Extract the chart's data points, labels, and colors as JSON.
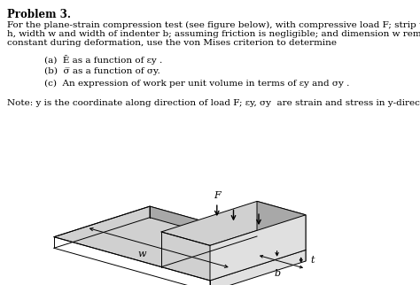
{
  "title": "Problem 3.",
  "line1": "For the plane-strain compression test (see figure below), with compressive load F; strip thickness",
  "line2": "h, width w and width of indenter b; assuming friction is negligible; and dimension w remains",
  "line3": "constant during deformation, use the von Mises criterion to determine",
  "item_a": "(a)  Ē as a function of εy .",
  "item_b": "(b)  σ̅ as a function of σy.",
  "item_c": "(c)  An expression of work per unit volume in terms of εy and σy .",
  "note": "Note: y is the coordinate along direction of load F; εy, σy  are strain and stress in y-direction.",
  "background": "#ffffff",
  "text_color": "#000000",
  "label_F": "F",
  "label_w": "w",
  "label_t": "t",
  "label_b": "b",
  "face_top": "#d0d0d0",
  "face_front": "#a8a8a8",
  "face_side": "#e0e0e0",
  "edge_color": "#000000"
}
